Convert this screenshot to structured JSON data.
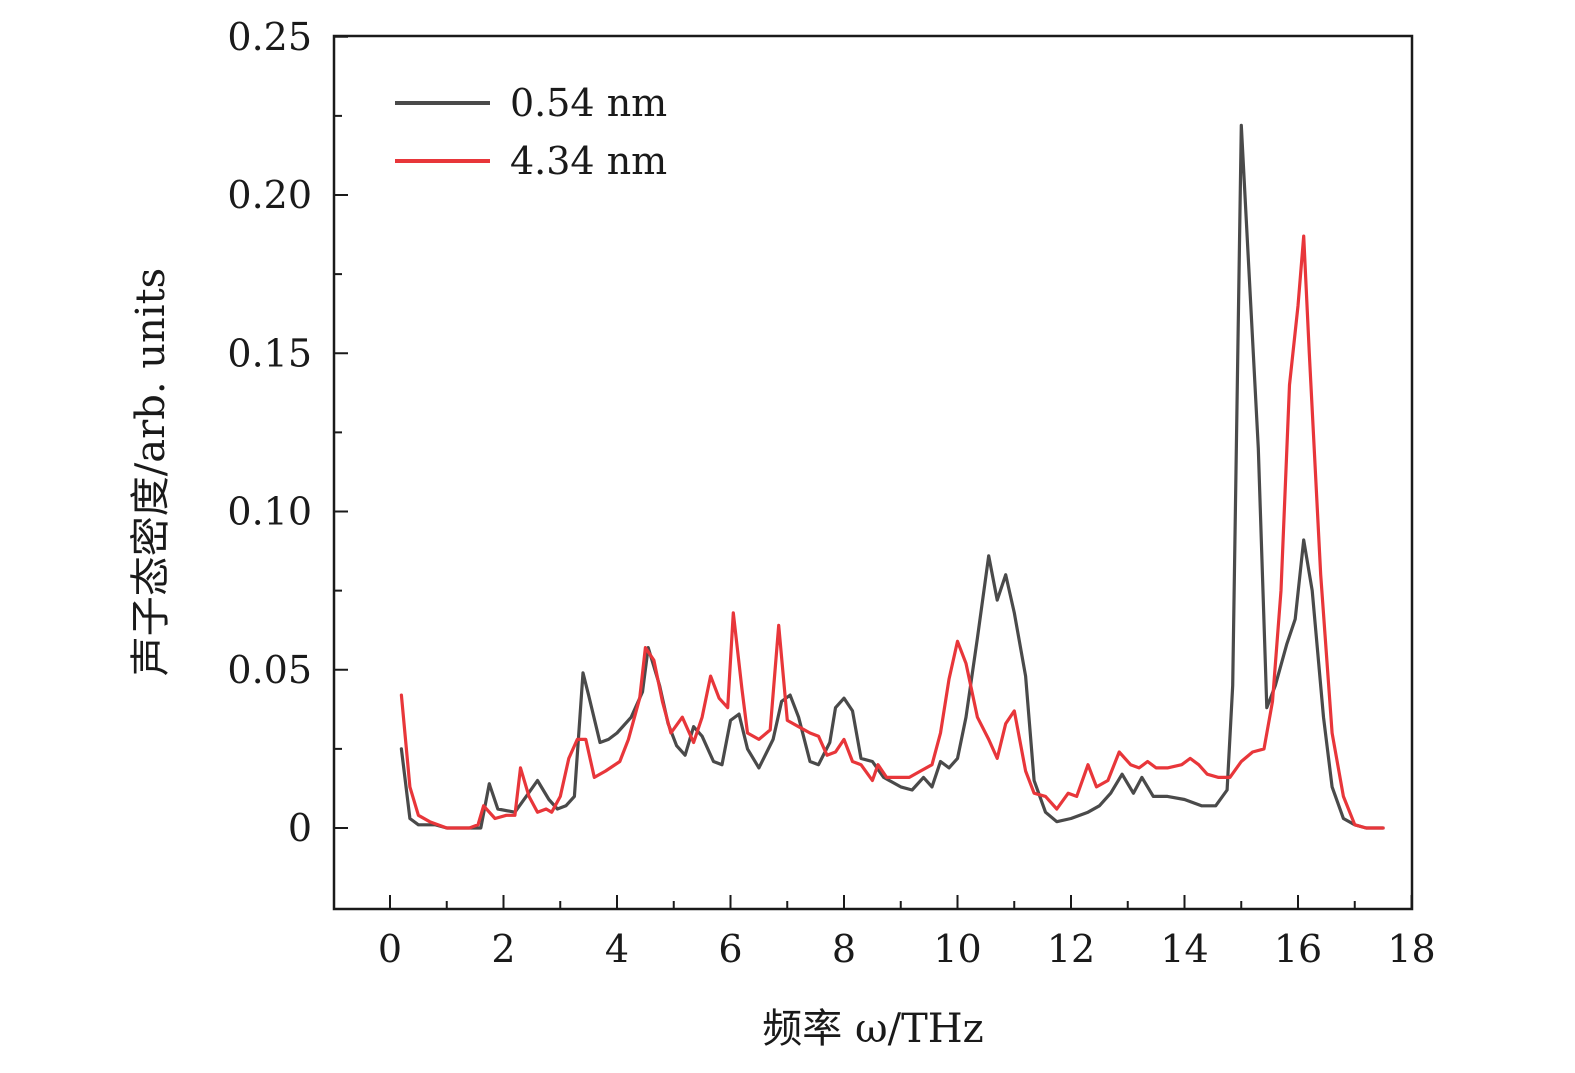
{
  "chart_data": {
    "type": "line",
    "xlabel": "频率 ω/THz",
    "ylabel": "声子态密度/arb. units",
    "xlim": [
      -1,
      18
    ],
    "ylim": [
      -0.025,
      0.25
    ],
    "x_ticks": [
      "0",
      "2",
      "4",
      "6",
      "8",
      "10",
      "12",
      "14",
      "16",
      "18"
    ],
    "y_ticks": [
      "0",
      "0.05",
      "0.10",
      "0.15",
      "0.20",
      "0.25"
    ],
    "grid": false,
    "legend_position": "top-left",
    "series": [
      {
        "name": "0.54 nm",
        "color": "#4a4a4a",
        "points": [
          [
            0.2,
            0.025
          ],
          [
            0.35,
            0.003
          ],
          [
            0.5,
            0.001
          ],
          [
            0.8,
            0.001
          ],
          [
            1.0,
            0.0
          ],
          [
            1.3,
            0.0
          ],
          [
            1.6,
            0.0
          ],
          [
            1.75,
            0.014
          ],
          [
            1.9,
            0.006
          ],
          [
            2.2,
            0.005
          ],
          [
            2.4,
            0.01
          ],
          [
            2.6,
            0.015
          ],
          [
            2.8,
            0.009
          ],
          [
            2.95,
            0.006
          ],
          [
            3.1,
            0.007
          ],
          [
            3.25,
            0.01
          ],
          [
            3.4,
            0.049
          ],
          [
            3.5,
            0.042
          ],
          [
            3.7,
            0.027
          ],
          [
            3.85,
            0.028
          ],
          [
            4.0,
            0.03
          ],
          [
            4.25,
            0.035
          ],
          [
            4.45,
            0.043
          ],
          [
            4.55,
            0.057
          ],
          [
            4.75,
            0.045
          ],
          [
            4.9,
            0.033
          ],
          [
            5.05,
            0.026
          ],
          [
            5.2,
            0.023
          ],
          [
            5.35,
            0.032
          ],
          [
            5.5,
            0.029
          ],
          [
            5.7,
            0.021
          ],
          [
            5.85,
            0.02
          ],
          [
            6.0,
            0.034
          ],
          [
            6.15,
            0.036
          ],
          [
            6.3,
            0.025
          ],
          [
            6.5,
            0.019
          ],
          [
            6.75,
            0.028
          ],
          [
            6.9,
            0.04
          ],
          [
            7.05,
            0.042
          ],
          [
            7.2,
            0.035
          ],
          [
            7.4,
            0.021
          ],
          [
            7.55,
            0.02
          ],
          [
            7.75,
            0.027
          ],
          [
            7.85,
            0.038
          ],
          [
            8.0,
            0.041
          ],
          [
            8.15,
            0.037
          ],
          [
            8.3,
            0.022
          ],
          [
            8.5,
            0.021
          ],
          [
            8.7,
            0.016
          ],
          [
            9.0,
            0.013
          ],
          [
            9.2,
            0.012
          ],
          [
            9.4,
            0.016
          ],
          [
            9.55,
            0.013
          ],
          [
            9.7,
            0.021
          ],
          [
            9.85,
            0.019
          ],
          [
            10.0,
            0.022
          ],
          [
            10.15,
            0.035
          ],
          [
            10.35,
            0.06
          ],
          [
            10.55,
            0.086
          ],
          [
            10.7,
            0.072
          ],
          [
            10.85,
            0.08
          ],
          [
            11.0,
            0.068
          ],
          [
            11.2,
            0.048
          ],
          [
            11.35,
            0.015
          ],
          [
            11.55,
            0.005
          ],
          [
            11.75,
            0.002
          ],
          [
            12.0,
            0.003
          ],
          [
            12.3,
            0.005
          ],
          [
            12.5,
            0.007
          ],
          [
            12.7,
            0.011
          ],
          [
            12.9,
            0.017
          ],
          [
            13.1,
            0.011
          ],
          [
            13.25,
            0.016
          ],
          [
            13.45,
            0.01
          ],
          [
            13.7,
            0.01
          ],
          [
            14.0,
            0.009
          ],
          [
            14.3,
            0.007
          ],
          [
            14.55,
            0.007
          ],
          [
            14.75,
            0.012
          ],
          [
            14.85,
            0.045
          ],
          [
            15.0,
            0.222
          ],
          [
            15.3,
            0.12
          ],
          [
            15.45,
            0.038
          ],
          [
            15.6,
            0.045
          ],
          [
            15.8,
            0.058
          ],
          [
            15.95,
            0.066
          ],
          [
            16.1,
            0.091
          ],
          [
            16.25,
            0.075
          ],
          [
            16.45,
            0.035
          ],
          [
            16.6,
            0.013
          ],
          [
            16.8,
            0.003
          ],
          [
            17.0,
            0.001
          ],
          [
            17.2,
            0.0
          ],
          [
            17.5,
            0.0
          ]
        ]
      },
      {
        "name": "4.34 nm",
        "color": "#e8363a",
        "points": [
          [
            0.2,
            0.042
          ],
          [
            0.35,
            0.013
          ],
          [
            0.5,
            0.004
          ],
          [
            0.7,
            0.002
          ],
          [
            1.0,
            0.0
          ],
          [
            1.2,
            0.0
          ],
          [
            1.4,
            0.0
          ],
          [
            1.55,
            0.001
          ],
          [
            1.65,
            0.007
          ],
          [
            1.85,
            0.003
          ],
          [
            2.05,
            0.004
          ],
          [
            2.2,
            0.004
          ],
          [
            2.3,
            0.019
          ],
          [
            2.45,
            0.01
          ],
          [
            2.6,
            0.005
          ],
          [
            2.75,
            0.006
          ],
          [
            2.85,
            0.005
          ],
          [
            3.0,
            0.01
          ],
          [
            3.15,
            0.022
          ],
          [
            3.3,
            0.028
          ],
          [
            3.45,
            0.028
          ],
          [
            3.6,
            0.016
          ],
          [
            3.8,
            0.018
          ],
          [
            4.05,
            0.021
          ],
          [
            4.2,
            0.028
          ],
          [
            4.4,
            0.041
          ],
          [
            4.5,
            0.057
          ],
          [
            4.65,
            0.053
          ],
          [
            4.8,
            0.04
          ],
          [
            4.95,
            0.03
          ],
          [
            5.15,
            0.035
          ],
          [
            5.35,
            0.027
          ],
          [
            5.5,
            0.035
          ],
          [
            5.65,
            0.048
          ],
          [
            5.8,
            0.041
          ],
          [
            5.95,
            0.038
          ],
          [
            6.05,
            0.068
          ],
          [
            6.2,
            0.044
          ],
          [
            6.3,
            0.03
          ],
          [
            6.5,
            0.028
          ],
          [
            6.7,
            0.031
          ],
          [
            6.85,
            0.064
          ],
          [
            7.0,
            0.034
          ],
          [
            7.2,
            0.032
          ],
          [
            7.4,
            0.03
          ],
          [
            7.55,
            0.029
          ],
          [
            7.7,
            0.023
          ],
          [
            7.85,
            0.024
          ],
          [
            8.0,
            0.028
          ],
          [
            8.15,
            0.021
          ],
          [
            8.3,
            0.02
          ],
          [
            8.5,
            0.015
          ],
          [
            8.6,
            0.02
          ],
          [
            8.75,
            0.016
          ],
          [
            8.95,
            0.016
          ],
          [
            9.15,
            0.016
          ],
          [
            9.35,
            0.018
          ],
          [
            9.55,
            0.02
          ],
          [
            9.7,
            0.03
          ],
          [
            9.85,
            0.047
          ],
          [
            10.0,
            0.059
          ],
          [
            10.15,
            0.052
          ],
          [
            10.35,
            0.035
          ],
          [
            10.55,
            0.028
          ],
          [
            10.7,
            0.022
          ],
          [
            10.85,
            0.033
          ],
          [
            11.0,
            0.037
          ],
          [
            11.2,
            0.018
          ],
          [
            11.35,
            0.011
          ],
          [
            11.55,
            0.01
          ],
          [
            11.75,
            0.006
          ],
          [
            11.95,
            0.011
          ],
          [
            12.1,
            0.01
          ],
          [
            12.3,
            0.02
          ],
          [
            12.45,
            0.013
          ],
          [
            12.65,
            0.015
          ],
          [
            12.85,
            0.024
          ],
          [
            13.05,
            0.02
          ],
          [
            13.2,
            0.019
          ],
          [
            13.35,
            0.021
          ],
          [
            13.5,
            0.019
          ],
          [
            13.7,
            0.019
          ],
          [
            13.95,
            0.02
          ],
          [
            14.1,
            0.022
          ],
          [
            14.25,
            0.02
          ],
          [
            14.4,
            0.017
          ],
          [
            14.6,
            0.016
          ],
          [
            14.8,
            0.016
          ],
          [
            15.0,
            0.021
          ],
          [
            15.2,
            0.024
          ],
          [
            15.4,
            0.025
          ],
          [
            15.55,
            0.04
          ],
          [
            15.7,
            0.075
          ],
          [
            15.85,
            0.14
          ],
          [
            16.0,
            0.165
          ],
          [
            16.1,
            0.187
          ],
          [
            16.2,
            0.15
          ],
          [
            16.4,
            0.08
          ],
          [
            16.6,
            0.03
          ],
          [
            16.8,
            0.01
          ],
          [
            17.0,
            0.001
          ],
          [
            17.2,
            0.0
          ],
          [
            17.5,
            0.0
          ]
        ]
      }
    ]
  }
}
